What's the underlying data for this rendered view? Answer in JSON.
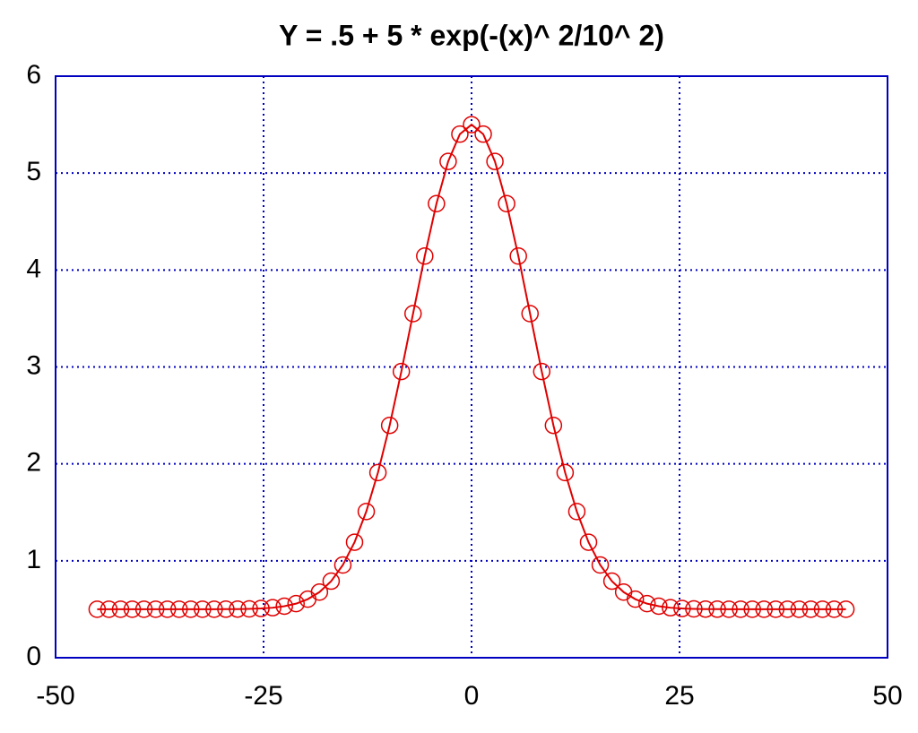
{
  "chart_data": {
    "type": "line",
    "title": "Y = .5 + 5 * exp(-(x)^ 2/10^ 2)",
    "x": [
      -45,
      -43.59375,
      -42.1875,
      -40.78125,
      -39.375,
      -37.96875,
      -36.5625,
      -35.15625,
      -33.75,
      -32.34375,
      -30.9375,
      -29.53125,
      -28.125,
      -26.71875,
      -25.3125,
      -23.90625,
      -22.5,
      -21.09375,
      -19.6875,
      -18.28125,
      -16.875,
      -15.46875,
      -14.0625,
      -12.65625,
      -11.25,
      -9.84375,
      -8.4375,
      -7.03125,
      -5.625,
      -4.21875,
      -2.8125,
      -1.40625,
      0,
      1.40625,
      2.8125,
      4.21875,
      5.625,
      7.03125,
      8.4375,
      9.84375,
      11.25,
      12.65625,
      14.0625,
      15.46875,
      16.875,
      18.28125,
      19.6875,
      21.09375,
      22.5,
      23.90625,
      25.3125,
      26.71875,
      28.125,
      29.53125,
      30.9375,
      32.34375,
      33.75,
      35.15625,
      36.5625,
      37.96875,
      39.375,
      40.78125,
      42.1875,
      43.59375,
      45
    ],
    "series": [
      {
        "color": "#e00000",
        "marker": "circle",
        "values": [
          0.5,
          0.5,
          0.5,
          0.5,
          0.5,
          0.5,
          0.5,
          0.5,
          0.5,
          0.5,
          0.5,
          0.501,
          0.502,
          0.504,
          0.508,
          0.516,
          0.532,
          0.558,
          0.604,
          0.677,
          0.79,
          0.957,
          1.192,
          1.508,
          1.91,
          2.397,
          2.953,
          3.55,
          4.144,
          4.685,
          5.12,
          5.402,
          5.5,
          5.402,
          5.12,
          4.685,
          4.144,
          3.55,
          2.953,
          2.397,
          1.91,
          1.508,
          1.192,
          0.957,
          0.79,
          0.677,
          0.604,
          0.558,
          0.532,
          0.516,
          0.508,
          0.504,
          0.502,
          0.501,
          0.5,
          0.5,
          0.5,
          0.5,
          0.5,
          0.5,
          0.5,
          0.5,
          0.5,
          0.5,
          0.5
        ]
      }
    ],
    "xlim": [
      -50,
      50
    ],
    "ylim": [
      0,
      6
    ],
    "xticks": [
      -50,
      -25,
      0,
      25,
      50
    ],
    "yticks": [
      0,
      1,
      2,
      3,
      4,
      5,
      6
    ],
    "grid": true,
    "frame_color": "#0000c0"
  }
}
